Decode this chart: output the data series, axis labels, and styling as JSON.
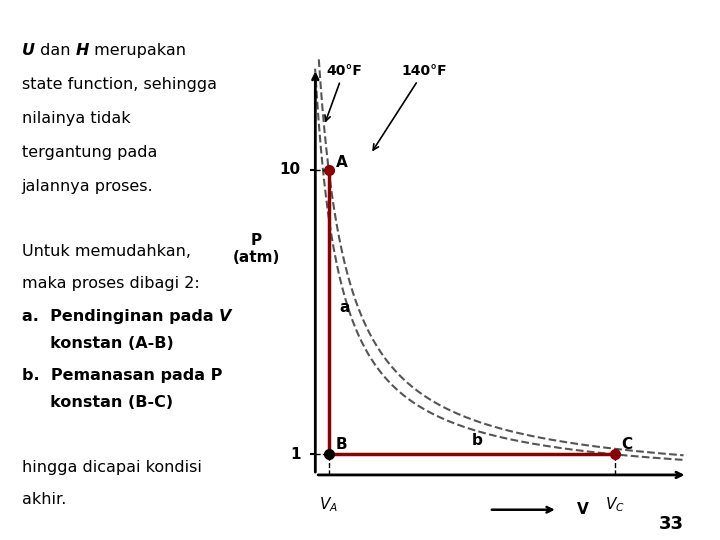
{
  "P_label": "P\n(atm)",
  "V_label": "V",
  "VA_label": "$V_A$",
  "VC_label": "$V_C$",
  "tick_10": 10,
  "tick_1": 1,
  "A_label": "A",
  "B_label": "B",
  "b_label": "b",
  "a_label": "a",
  "C_label": "C",
  "isotherm_40_label": "40°F",
  "isotherm_140_label": "140°F",
  "point_A": [
    1.0,
    10.0
  ],
  "point_B": [
    1.0,
    1.0
  ],
  "point_C": [
    8.5,
    1.0
  ],
  "VA_x": 1.0,
  "VC_x": 8.5,
  "xmin": 0.5,
  "xmax": 10.5,
  "ymin": 0.0,
  "ymax": 14.0,
  "curve_color": "#555555",
  "process_color": "#8B0000",
  "background_color": "#ffffff",
  "page_number": "33",
  "texts": [
    [
      [
        "U",
        true,
        true
      ],
      [
        " dan ",
        false,
        false
      ],
      [
        "H",
        true,
        true
      ],
      [
        " merupakan",
        false,
        false
      ]
    ],
    [
      [
        "state function, sehingga",
        false,
        false
      ]
    ],
    [
      [
        "nilainya tidak",
        false,
        false
      ]
    ],
    [
      [
        "tergantung pada",
        false,
        false
      ]
    ],
    [
      [
        "jalannya proses.",
        false,
        false
      ]
    ],
    [
      [
        "",
        false,
        false
      ]
    ],
    [
      [
        "Untuk memudahkan,",
        false,
        false
      ]
    ],
    [
      [
        "maka proses dibagi 2:",
        false,
        false
      ]
    ],
    [
      [
        "a.  Pendinginan pada ",
        false,
        true
      ],
      [
        "V",
        true,
        true
      ]
    ],
    [
      [
        "     konstan (A-B)",
        false,
        true
      ]
    ],
    [
      [
        "b.  Pemanasan pada P",
        false,
        true
      ]
    ],
    [
      [
        "     konstan (B-C)",
        false,
        true
      ]
    ],
    [
      [
        "",
        false,
        false
      ]
    ],
    [
      [
        "hingga dicapai kondisi",
        false,
        false
      ]
    ],
    [
      [
        "akhir.",
        false,
        false
      ]
    ]
  ],
  "y_positions": [
    0.92,
    0.858,
    0.795,
    0.732,
    0.669,
    0.61,
    0.548,
    0.488,
    0.428,
    0.378,
    0.318,
    0.268,
    0.21,
    0.148,
    0.088
  ]
}
